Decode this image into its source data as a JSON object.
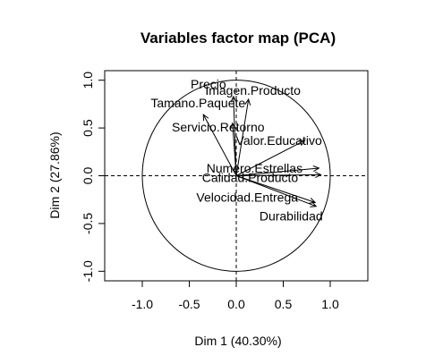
{
  "chart_data": {
    "type": "scatter",
    "title": "Variables factor map (PCA)",
    "xlabel": "Dim 1 (40.30%)",
    "ylabel": "Dim 2 (27.86%)",
    "xlim": [
      -1.4,
      1.4
    ],
    "ylim": [
      -1.1,
      1.1
    ],
    "xticks": [
      -1.0,
      -0.5,
      0.0,
      0.5,
      1.0
    ],
    "yticks": [
      -1.0,
      -0.5,
      0.0,
      0.5,
      1.0
    ],
    "tick_labels_x": [
      "-1.0",
      "-0.5",
      "0.0",
      "0.5",
      "1.0"
    ],
    "tick_labels_y": [
      "-1.0",
      "-0.5",
      "0.0",
      "0.5",
      "1.0"
    ],
    "unit_circle": true,
    "reference_lines": [
      0,
      0
    ],
    "grid": false,
    "colors": {
      "arrow": "#000000",
      "circle": "#000000",
      "frame": "#000000"
    },
    "variables": [
      {
        "name": "Precio",
        "x": -0.03,
        "y": 0.83
      },
      {
        "name": "Imagen.Producto",
        "x": 0.13,
        "y": 0.8
      },
      {
        "name": "Tamano.Paquete",
        "x": -0.35,
        "y": 0.64
      },
      {
        "name": "Servicio.Retorno",
        "x": -0.04,
        "y": 0.55
      },
      {
        "name": "Valor.Educativo",
        "x": 0.73,
        "y": 0.37
      },
      {
        "name": "Numero.Estrellas",
        "x": 0.88,
        "y": 0.08
      },
      {
        "name": "Calidad.Producto",
        "x": 0.9,
        "y": 0.01
      },
      {
        "name": "Velocidad.Entrega",
        "x": 0.84,
        "y": -0.28
      },
      {
        "name": "Durabilidad",
        "x": 0.85,
        "y": -0.32
      }
    ]
  }
}
